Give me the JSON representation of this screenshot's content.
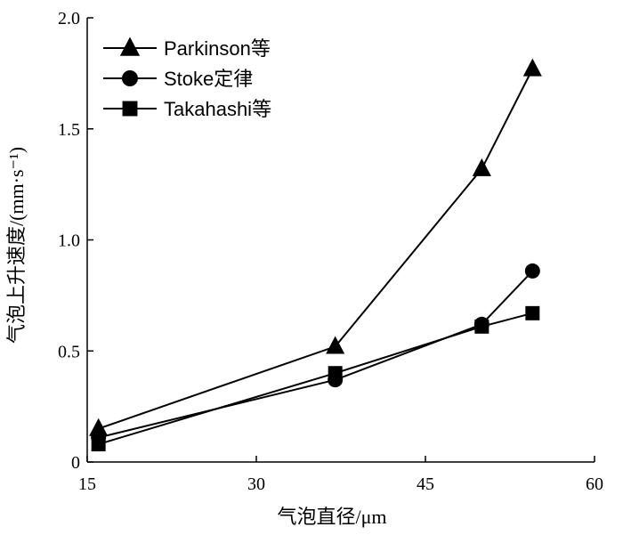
{
  "chart_data": {
    "type": "line",
    "xlabel": "气泡直径/μm",
    "ylabel": "气泡上升速度/(mm·s⁻¹)",
    "xlim": [
      15,
      60
    ],
    "ylim": [
      0,
      2.0
    ],
    "x_ticks": [
      15,
      30,
      45,
      60
    ],
    "x_tick_labels": [
      "15",
      "30",
      "45",
      "60"
    ],
    "y_ticks": [
      0,
      0.5,
      1.0,
      1.5,
      2.0
    ],
    "y_tick_labels": [
      "0",
      "0.5",
      "1.0",
      "1.5",
      "2.0"
    ],
    "grid": false,
    "legend_position": "top-left",
    "series": [
      {
        "name": "Parkinson等",
        "marker": "triangle",
        "x": [
          16,
          37,
          50,
          54.5
        ],
        "y": [
          0.15,
          0.52,
          1.32,
          1.77
        ]
      },
      {
        "name": "Stoke定律",
        "marker": "circle",
        "x": [
          16,
          37,
          50,
          54.5
        ],
        "y": [
          0.11,
          0.37,
          0.62,
          0.86
        ]
      },
      {
        "name": "Takahashi等",
        "marker": "square",
        "x": [
          16,
          37,
          50,
          54.5
        ],
        "y": [
          0.08,
          0.4,
          0.61,
          0.67
        ]
      }
    ]
  }
}
